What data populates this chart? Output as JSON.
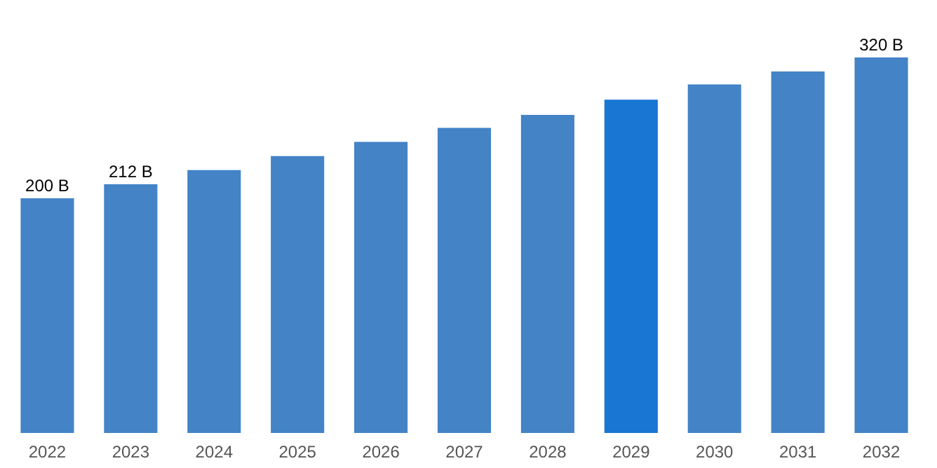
{
  "chart_data": {
    "type": "bar",
    "categories": [
      "2022",
      "2023",
      "2024",
      "2025",
      "2026",
      "2027",
      "2028",
      "2029",
      "2030",
      "2031",
      "2032"
    ],
    "values": [
      200,
      212,
      224,
      236,
      248,
      260,
      271,
      284,
      297,
      308,
      320
    ],
    "value_labels": [
      "200 B",
      "212 B",
      null,
      null,
      null,
      null,
      null,
      null,
      null,
      null,
      "320 B"
    ],
    "colors": [
      "#4383c6",
      "#4383c6",
      "#4383c6",
      "#4383c6",
      "#4383c6",
      "#4383c6",
      "#4383c6",
      "#1976d2",
      "#4383c6",
      "#4383c6",
      "#4383c6"
    ],
    "grid": false
  }
}
